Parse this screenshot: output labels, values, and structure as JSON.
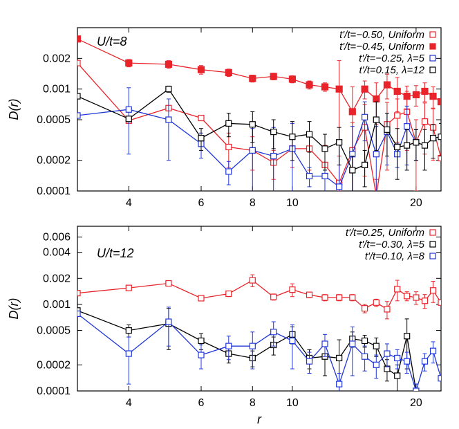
{
  "figure": {
    "xlabel": "r",
    "ylabel": "D(r)"
  },
  "chart_data": [
    {
      "type": "line",
      "panel_label": "U/t=8",
      "xscale": "log",
      "yscale": "log",
      "xlim": [
        3,
        23
      ],
      "ylim": [
        0.0001,
        0.004
      ],
      "xticks": [
        4,
        6,
        8,
        10,
        20
      ],
      "yticks": [
        0.0001,
        0.0002,
        0.0005,
        0.001,
        0.002
      ],
      "ytick_labels": [
        "0.0001",
        "0.0002",
        "0.0005",
        "0.001",
        "0.002"
      ],
      "xlabel": "",
      "ylabel": "D(r)",
      "legend_position": "top-right",
      "series": [
        {
          "name": "t'/t=−0.50, Uniform",
          "color": "#e8232a",
          "marker": "open-square",
          "x": [
            3,
            4,
            5,
            6,
            7,
            8,
            9,
            10,
            11,
            12,
            13,
            14,
            15,
            16,
            17,
            18,
            19,
            20,
            21,
            22,
            23
          ],
          "y": [
            0.0018,
            0.00049,
            0.00065,
            0.00052,
            0.00027,
            0.00025,
            0.00019,
            0.00026,
            0.00026,
            0.00018,
            0.00012,
            0.00025,
            0.00042,
            9e-05,
            0.00045,
            0.00055,
            0.0006,
            0.0003,
            0.00048,
            0.00042,
            0.00021
          ],
          "err": [
            0,
            0,
            3e-05,
            2e-05,
            0.0001,
            9e-05,
            6e-05,
            9e-05,
            0.0001,
            0.0001,
            0.0001,
            0.00022,
            0.00028,
            4e-05,
            0.00029,
            0.00025,
            0.00035,
            0.0002,
            0.00025,
            0.00022,
            0
          ]
        },
        {
          "name": "t'/t=−0.45, Uniform",
          "color": "#e8232a",
          "marker": "filled-square",
          "x": [
            3,
            4,
            5,
            6,
            7,
            8,
            9,
            10,
            11,
            12,
            13,
            14,
            15,
            16,
            17,
            18,
            19,
            20,
            21,
            22,
            23
          ],
          "y": [
            0.0031,
            0.0018,
            0.00175,
            0.00155,
            0.00145,
            0.00127,
            0.00133,
            0.00125,
            0.0011,
            0.00105,
            0.001,
            0.0006,
            0.001,
            0.0008,
            0.0011,
            0.00095,
            0.00085,
            0.00088,
            0.00095,
            0.00085,
            0.00075
          ],
          "err": [
            0,
            0.00015,
            0.00015,
            0.00015,
            0.00012,
            0.0001,
            0.0001,
            0.0001,
            0.0001,
            0.0001,
            0.0009,
            0.00045,
            0.0002,
            0.00035,
            0.0003,
            0.00035,
            0.00022,
            0.0002,
            0.0002,
            0.0002,
            0
          ]
        },
        {
          "name": "t'/t=−0.25, λ=5",
          "color": "#1f35d6",
          "marker": "open-square",
          "x": [
            3,
            4,
            5,
            6,
            7,
            8,
            9,
            10,
            11,
            12,
            13,
            14,
            15,
            16,
            17,
            18,
            19,
            20
          ],
          "y": [
            0.00055,
            0.00063,
            0.0005,
            0.00029,
            0.000155,
            0.00025,
            0.00022,
            0.00026,
            0.00014,
            0.00014,
            0.00011,
            0.00023,
            0.00053,
            0.00023,
            0.00038,
            0.00023,
            0.00043,
            0.0003
          ],
          "err": [
            0,
            0.0004,
            0.0003,
            8e-05,
            4e-05,
            0.00016,
            0.0002,
            0.0002,
            3e-05,
            0.00012,
            0.00018,
            0.0002,
            0.00022,
            0.0002,
            0.0002,
            6e-05,
            0.00025,
            0.0001
          ]
        },
        {
          "name": "t'/t=0.15, λ=12",
          "color": "#000000",
          "marker": "open-square",
          "x": [
            3,
            4,
            5,
            6,
            7,
            8,
            9,
            10,
            11,
            12,
            13,
            14,
            15,
            16,
            17,
            18,
            19,
            20,
            21,
            22,
            23
          ],
          "y": [
            0.00085,
            0.00051,
            0.001,
            0.00033,
            0.00046,
            0.00045,
            0.00038,
            0.00034,
            0.00036,
            0.00026,
            0.0003,
            0.00016,
            0.00018,
            0.0005,
            0.0004,
            0.00027,
            0.00028,
            0.0003,
            0.00028,
            0.00033,
            0.00034
          ],
          "err": [
            0,
            3e-05,
            7e-05,
            8e-05,
            0.00012,
            0.00015,
            0.00012,
            0.00014,
            0.00012,
            0.0001,
            0.00012,
            6e-05,
            7e-05,
            0.00025,
            0.00018,
            0.00014,
            0.00012,
            0.0001,
            0.00012,
            0.00012,
            0.00012
          ]
        }
      ]
    },
    {
      "type": "line",
      "panel_label": "U/t=12",
      "xscale": "log",
      "yscale": "log",
      "xlim": [
        3,
        23
      ],
      "ylim": [
        0.0001,
        0.008
      ],
      "xticks": [
        4,
        6,
        8,
        10,
        20
      ],
      "yticks": [
        0.0001,
        0.0002,
        0.0005,
        0.001,
        0.002,
        0.004,
        0.006
      ],
      "ytick_labels": [
        "0.0001",
        "0.0002",
        "0.0005",
        "0.001",
        "0.002",
        "0.004",
        "0.006"
      ],
      "xlabel": "r",
      "ylabel": "D(r)",
      "legend_position": "top-right",
      "series": [
        {
          "name": "t'/t=0.25, Uniform",
          "color": "#e8232a",
          "marker": "open-square",
          "x": [
            3,
            4,
            5,
            6,
            7,
            8,
            9,
            10,
            11,
            12,
            13,
            14,
            15,
            16,
            17,
            18,
            19,
            20,
            21,
            22,
            23
          ],
          "y": [
            0.00135,
            0.00155,
            0.00175,
            0.00118,
            0.00133,
            0.0019,
            0.00122,
            0.00148,
            0.00129,
            0.0012,
            0.0012,
            0.0012,
            0.0009,
            0.00105,
            0.00088,
            0.0015,
            0.00125,
            0.0012,
            0.0011,
            0.00145,
            0.00105
          ],
          "err": [
            0,
            5e-05,
            0.00012,
            8e-05,
            0.0001,
            0.0003,
            0.0001,
            0.00025,
            0.0001,
            0.0001,
            0.0001,
            0.0001,
            0.0001,
            0.0001,
            0.0002,
            0.0004,
            0.00015,
            0.0002,
            0.0002,
            0.0004,
            0
          ]
        },
        {
          "name": "t'/t=−0.30, λ=5",
          "color": "#000000",
          "marker": "open-square",
          "x": [
            3,
            4,
            5,
            6,
            7,
            8,
            9,
            10,
            11,
            12,
            13,
            14,
            15,
            16,
            17,
            18,
            19,
            20
          ],
          "y": [
            0.00085,
            0.0005,
            0.0006,
            0.00038,
            0.00027,
            0.00024,
            0.00034,
            0.00045,
            0.00024,
            0.00025,
            0.00024,
            0.0004,
            0.00038,
            0.00033,
            0.00018,
            0.00015,
            0.00043,
            0.0001
          ],
          "err": [
            0,
            8e-05,
            0.0003,
            8e-05,
            6e-05,
            5e-05,
            8e-05,
            0.0001,
            6e-05,
            0.0001,
            0.00015,
            8e-05,
            6e-05,
            8e-05,
            5e-05,
            5e-05,
            0.00025,
            2e-05
          ]
        },
        {
          "name": "t'/t=0.10, λ=8",
          "color": "#1f35d6",
          "marker": "open-square",
          "x": [
            3,
            4,
            5,
            6,
            7,
            8,
            9,
            10,
            11,
            12,
            13,
            14,
            15,
            16,
            17,
            18,
            19,
            20,
            21,
            22,
            23
          ],
          "y": [
            0.00078,
            0.00027,
            0.00063,
            0.00026,
            0.00033,
            0.00033,
            0.00048,
            0.00038,
            0.00022,
            0.00035,
            0.00012,
            0.00035,
            0.00025,
            0.0002,
            0.00027,
            0.00024,
            0.00022,
            0.0001,
            0.00022,
            0.00029,
            0.00014
          ],
          "err": [
            0,
            0.00015,
            0.0003,
            8e-05,
            0.0001,
            0.00015,
            0.00015,
            0.0002,
            6e-05,
            0.0001,
            4e-05,
            0.0002,
            8e-05,
            6e-05,
            8e-05,
            6e-05,
            6e-05,
            2e-05,
            5e-05,
            8e-05,
            0
          ]
        }
      ]
    }
  ]
}
